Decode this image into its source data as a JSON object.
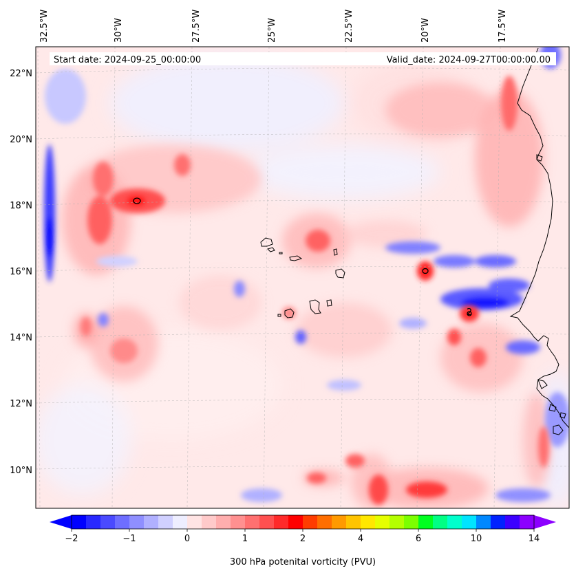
{
  "header": {
    "start_date": "Start date: 2024-09-25_00:00:00",
    "valid_date": "Valid_date: 2024-09-27T00:00:00.00"
  },
  "map": {
    "lon_labels": [
      "32.5°W",
      "30°W",
      "27.5°W",
      "25°W",
      "22.5°W",
      "20°W",
      "17.5°W"
    ],
    "lat_labels": [
      "22°N",
      "20°N",
      "18°N",
      "16°N",
      "14°N",
      "12°N",
      "10°N"
    ],
    "gridlines": "dashed",
    "contour_label": "2",
    "features": [
      "cabo-verde-islands",
      "west-africa-coastline"
    ]
  },
  "colorbar": {
    "label": "300 hPa potenital vorticity (PVU)",
    "tick_labels": [
      "−2",
      "−1",
      "0",
      "1",
      "2",
      "4",
      "6",
      "10",
      "14"
    ],
    "colors": [
      "#0000ff",
      "#2828ff",
      "#4a4aff",
      "#6e6eff",
      "#8f8fff",
      "#b0b0ff",
      "#d0d0ff",
      "#eeeeff",
      "#ffe4e4",
      "#ffcaca",
      "#ffaeae",
      "#ff9090",
      "#ff7070",
      "#ff5050",
      "#ff2a2a",
      "#ff0000",
      "#ff3c00",
      "#ff6e00",
      "#ff9a00",
      "#ffc400",
      "#ffe800",
      "#e6ff00",
      "#b4ff00",
      "#7cff00",
      "#00ff20",
      "#00ff84",
      "#00ffcc",
      "#00e4ff",
      "#0088ff",
      "#0022ff",
      "#3c00ff",
      "#8c00ff"
    ]
  }
}
